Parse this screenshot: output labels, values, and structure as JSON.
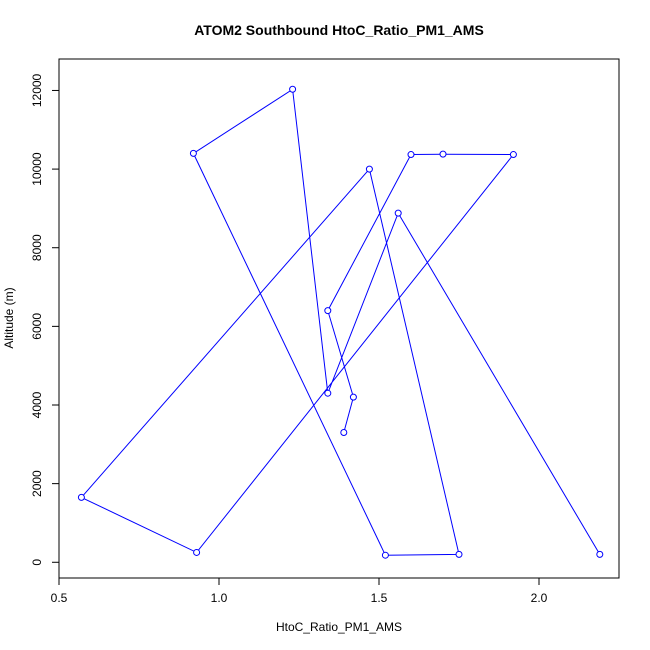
{
  "chart_data": {
    "type": "line",
    "title": "ATOM2 Southbound HtoC_Ratio_PM1_AMS",
    "xlabel": "HtoC_Ratio_PM1_AMS",
    "ylabel": "Altitude (m)",
    "xlim": [
      0.5,
      2.25
    ],
    "ylim": [
      -400,
      12800
    ],
    "xticks": [
      0.5,
      1.0,
      1.5,
      2.0
    ],
    "xtick_labels": [
      "0.5",
      "1.0",
      "1.5",
      "2.0"
    ],
    "yticks": [
      0,
      2000,
      4000,
      6000,
      8000,
      10000,
      12000
    ],
    "ytick_labels": [
      "0",
      "2000",
      "4000",
      "6000",
      "8000",
      "10000",
      "12000"
    ],
    "grid": false,
    "line_color": "#0000ff",
    "marker": "open-circle",
    "points": [
      {
        "x": 1.39,
        "y": 3300
      },
      {
        "x": 1.42,
        "y": 4200
      },
      {
        "x": 1.34,
        "y": 6400
      },
      {
        "x": 1.6,
        "y": 10370
      },
      {
        "x": 1.7,
        "y": 10380
      },
      {
        "x": 1.92,
        "y": 10370
      },
      {
        "x": 0.93,
        "y": 250
      },
      {
        "x": 0.57,
        "y": 1650
      },
      {
        "x": 1.47,
        "y": 10000
      },
      {
        "x": 1.75,
        "y": 200
      },
      {
        "x": 1.52,
        "y": 180
      },
      {
        "x": 0.92,
        "y": 10400
      },
      {
        "x": 1.23,
        "y": 12030
      },
      {
        "x": 1.34,
        "y": 4300
      },
      {
        "x": 1.56,
        "y": 8880
      },
      {
        "x": 2.19,
        "y": 200
      }
    ]
  }
}
